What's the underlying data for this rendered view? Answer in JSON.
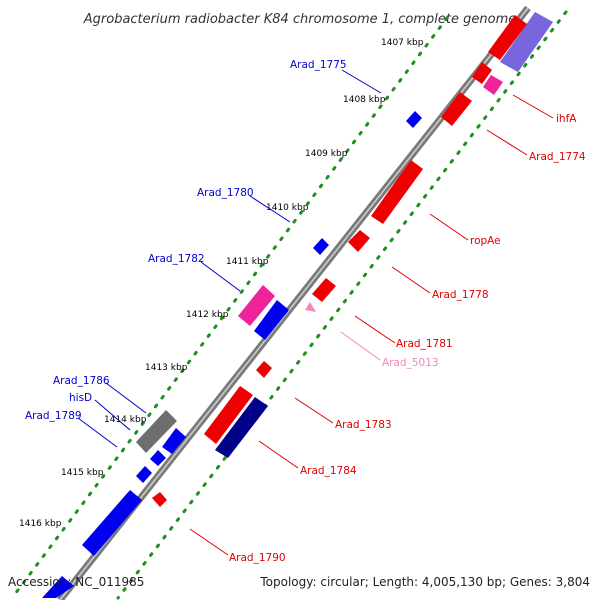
{
  "title": "Agrobacterium radiobacter K84 chromosome 1, complete genome",
  "footer": {
    "accession": "Accession: NC_011985",
    "summary": "Topology: circular; Length: 4,005,130 bp; Genes: 3,804"
  },
  "colors": {
    "forward_label": "#0000cc",
    "reverse_label": "#dd0000",
    "rna_label": "#ee88bb",
    "backbone": "#7a7a7a",
    "tick_dots": "#1f8f1f"
  },
  "kbp_labels": [
    "1407 kbp",
    "1408 kbp",
    "1409 kbp",
    "1410 kbp",
    "1411 kbp",
    "1412 kbp",
    "1413 kbp",
    "1414 kbp",
    "1415 kbp",
    "1416 kbp"
  ],
  "genes_left": [
    "Arad_1775",
    "Arad_1780",
    "Arad_1782",
    "Arad_1786",
    "hisD",
    "Arad_1789"
  ],
  "genes_right": [
    "ihfA",
    "Arad_1774",
    "ropAe",
    "Arad_1778",
    "Arad_1781",
    "Arad_5013",
    "Arad_1783",
    "Arad_1784",
    "Arad_1790"
  ]
}
